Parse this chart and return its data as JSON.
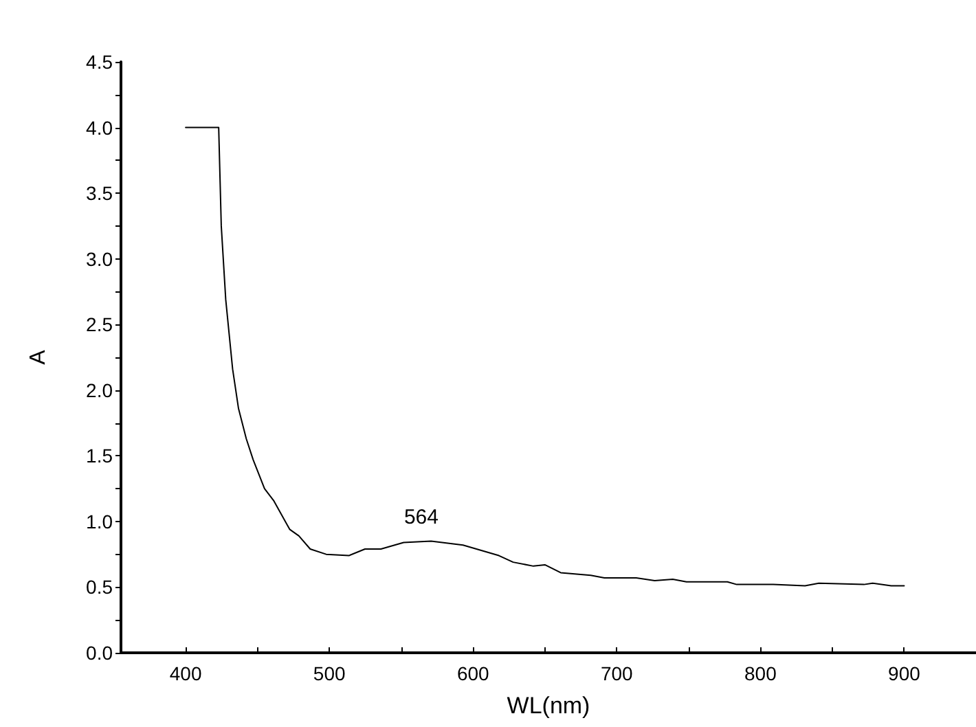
{
  "chart_data": {
    "type": "line",
    "xlabel": "WL(nm)",
    "ylabel": "A",
    "x": [
      400,
      423,
      424.8,
      427.9,
      432.7,
      436.8,
      442.2,
      447,
      454.9,
      461.2,
      472.4,
      478.8,
      486.7,
      497.8,
      513.6,
      524.8,
      535.9,
      551.7,
      570.8,
      593,
      618,
      627.9,
      642,
      650,
      661,
      681.9,
      691.4,
      713.6,
      726.4,
      739,
      748.5,
      777,
      783.5,
      808.9,
      831,
      840.6,
      872,
      878,
      891,
      900
    ],
    "series": [
      {
        "color": "#000000",
        "values": [
          4.0,
          4.0,
          3.25,
          2.69,
          2.16,
          1.86,
          1.63,
          1.47,
          1.25,
          1.16,
          0.94,
          0.89,
          0.79,
          0.75,
          0.74,
          0.79,
          0.79,
          0.84,
          0.85,
          0.82,
          0.74,
          0.69,
          0.66,
          0.67,
          0.61,
          0.59,
          0.57,
          0.57,
          0.55,
          0.56,
          0.54,
          0.54,
          0.52,
          0.52,
          0.51,
          0.53,
          0.52,
          0.53,
          0.51,
          0.51
        ]
      }
    ],
    "xlim": [
      355,
      950
    ],
    "xticks": [
      400,
      {
        "value": 450,
        "label": null
      },
      500,
      {
        "value": 550,
        "label": null
      },
      600,
      {
        "value": 650,
        "label": null
      },
      700,
      {
        "value": 750,
        "label": null
      },
      800,
      {
        "value": 850,
        "label": null
      },
      900
    ],
    "ylim": [
      0,
      4.5
    ],
    "yticks": [
      {
        "value": 0,
        "label": "0.0"
      },
      {
        "value": 0.25,
        "label": null
      },
      0.5,
      {
        "value": 0.75,
        "label": null
      },
      {
        "value": 1,
        "label": "1.0"
      },
      {
        "value": 1.25,
        "label": null
      },
      1.5,
      {
        "value": 1.75,
        "label": null
      },
      {
        "value": 2,
        "label": "2.0"
      },
      {
        "value": 2.25,
        "label": null
      },
      2.5,
      {
        "value": 2.75,
        "label": null
      },
      {
        "value": 3,
        "label": "3.0"
      },
      {
        "value": 3.25,
        "label": null
      },
      3.5,
      {
        "value": 3.75,
        "label": null
      },
      {
        "value": 4,
        "label": "4.0"
      },
      {
        "value": 4.25,
        "label": null
      },
      4.5
    ],
    "annotations": [
      {
        "text": "564",
        "x": 564,
        "y": 0.85
      }
    ],
    "grid": false,
    "marker": "none",
    "line_style": "solid"
  }
}
